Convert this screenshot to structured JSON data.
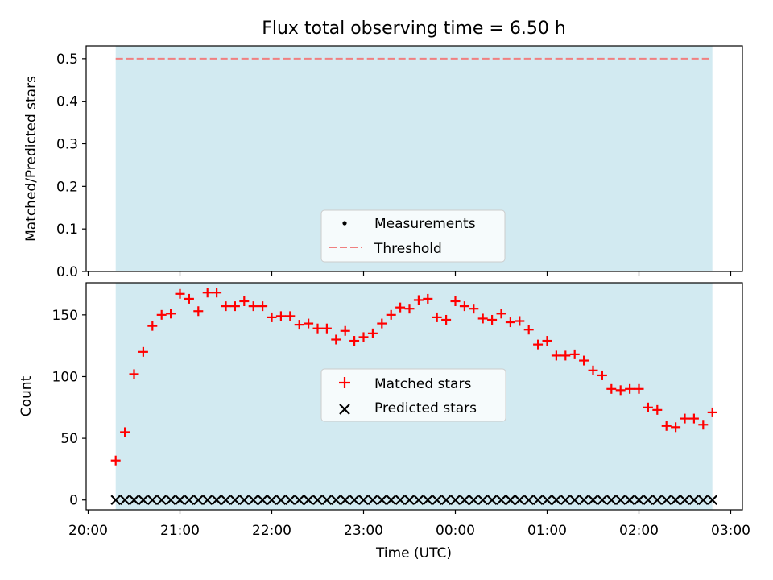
{
  "chart_data": [
    {
      "type": "scatter",
      "title": "Flux total observing time = 6.50 h",
      "xlabel": "",
      "ylabel": "Matched/Predicted stars",
      "ylim": [
        0,
        0.53
      ],
      "yticks": [
        "0.0",
        "0.1",
        "0.2",
        "0.3",
        "0.4",
        "0.5"
      ],
      "threshold": 0.5,
      "shaded_span": [
        "20:18",
        "02:48"
      ],
      "shade_color": "#add8e6",
      "threshold_color": "#f08080",
      "legend": {
        "position": "lower-center",
        "entries": [
          {
            "label": "Measurements",
            "marker": "dot",
            "color": "#000000"
          },
          {
            "label": "Threshold",
            "marker": "dashed-line",
            "color": "#f08080"
          }
        ]
      },
      "series": []
    },
    {
      "type": "scatter",
      "xlabel": "Time (UTC)",
      "ylabel": "Count",
      "ylim": [
        -8,
        176
      ],
      "yticks": [
        "0",
        "50",
        "100",
        "150"
      ],
      "xticks": [
        "20:00",
        "21:00",
        "22:00",
        "23:00",
        "00:00",
        "01:00",
        "02:00",
        "03:00"
      ],
      "shade_color": "#add8e6",
      "legend": {
        "position": "center",
        "entries": [
          {
            "label": "Matched stars",
            "marker": "plus",
            "color": "#ff0000"
          },
          {
            "label": "Predicted stars",
            "marker": "x",
            "color": "#000000"
          }
        ]
      },
      "x": [
        "20:18",
        "20:24",
        "20:30",
        "20:36",
        "20:42",
        "20:48",
        "20:54",
        "21:00",
        "21:06",
        "21:12",
        "21:18",
        "21:24",
        "21:30",
        "21:36",
        "21:42",
        "21:48",
        "21:54",
        "22:00",
        "22:06",
        "22:12",
        "22:18",
        "22:24",
        "22:30",
        "22:36",
        "22:42",
        "22:48",
        "22:54",
        "23:00",
        "23:06",
        "23:12",
        "23:18",
        "23:24",
        "23:30",
        "23:36",
        "23:42",
        "23:48",
        "23:54",
        "00:00",
        "00:06",
        "00:12",
        "00:18",
        "00:24",
        "00:30",
        "00:36",
        "00:42",
        "00:48",
        "00:54",
        "01:00",
        "01:06",
        "01:12",
        "01:18",
        "01:24",
        "01:30",
        "01:36",
        "01:42",
        "01:48",
        "01:54",
        "02:00",
        "02:06",
        "02:12",
        "02:18",
        "02:24",
        "02:30",
        "02:36",
        "02:42",
        "02:48"
      ],
      "series": [
        {
          "name": "Matched stars",
          "color": "#ff0000",
          "values": [
            32,
            55,
            102,
            120,
            141,
            150,
            151,
            167,
            163,
            153,
            168,
            168,
            157,
            157,
            161,
            157,
            157,
            148,
            149,
            149,
            142,
            143,
            139,
            139,
            130,
            137,
            129,
            132,
            135,
            143,
            150,
            156,
            155,
            162,
            163,
            148,
            146,
            161,
            157,
            155,
            147,
            146,
            151,
            144,
            145,
            138,
            126,
            129,
            117,
            117,
            118,
            113,
            105,
            101,
            90,
            89,
            90,
            90,
            75,
            73,
            60,
            59,
            66,
            66,
            61,
            71
          ]
        },
        {
          "name": "Predicted stars",
          "color": "#000000",
          "values": [
            0,
            0,
            0,
            0,
            0,
            0,
            0,
            0,
            0,
            0,
            0,
            0,
            0,
            0,
            0,
            0,
            0,
            0,
            0,
            0,
            0,
            0,
            0,
            0,
            0,
            0,
            0,
            0,
            0,
            0,
            0,
            0,
            0,
            0,
            0,
            0,
            0,
            0,
            0,
            0,
            0,
            0,
            0,
            0,
            0,
            0,
            0,
            0,
            0,
            0,
            0,
            0,
            0,
            0,
            0,
            0,
            0,
            0,
            0,
            0,
            0,
            0,
            0,
            0,
            0,
            0
          ]
        }
      ]
    }
  ]
}
